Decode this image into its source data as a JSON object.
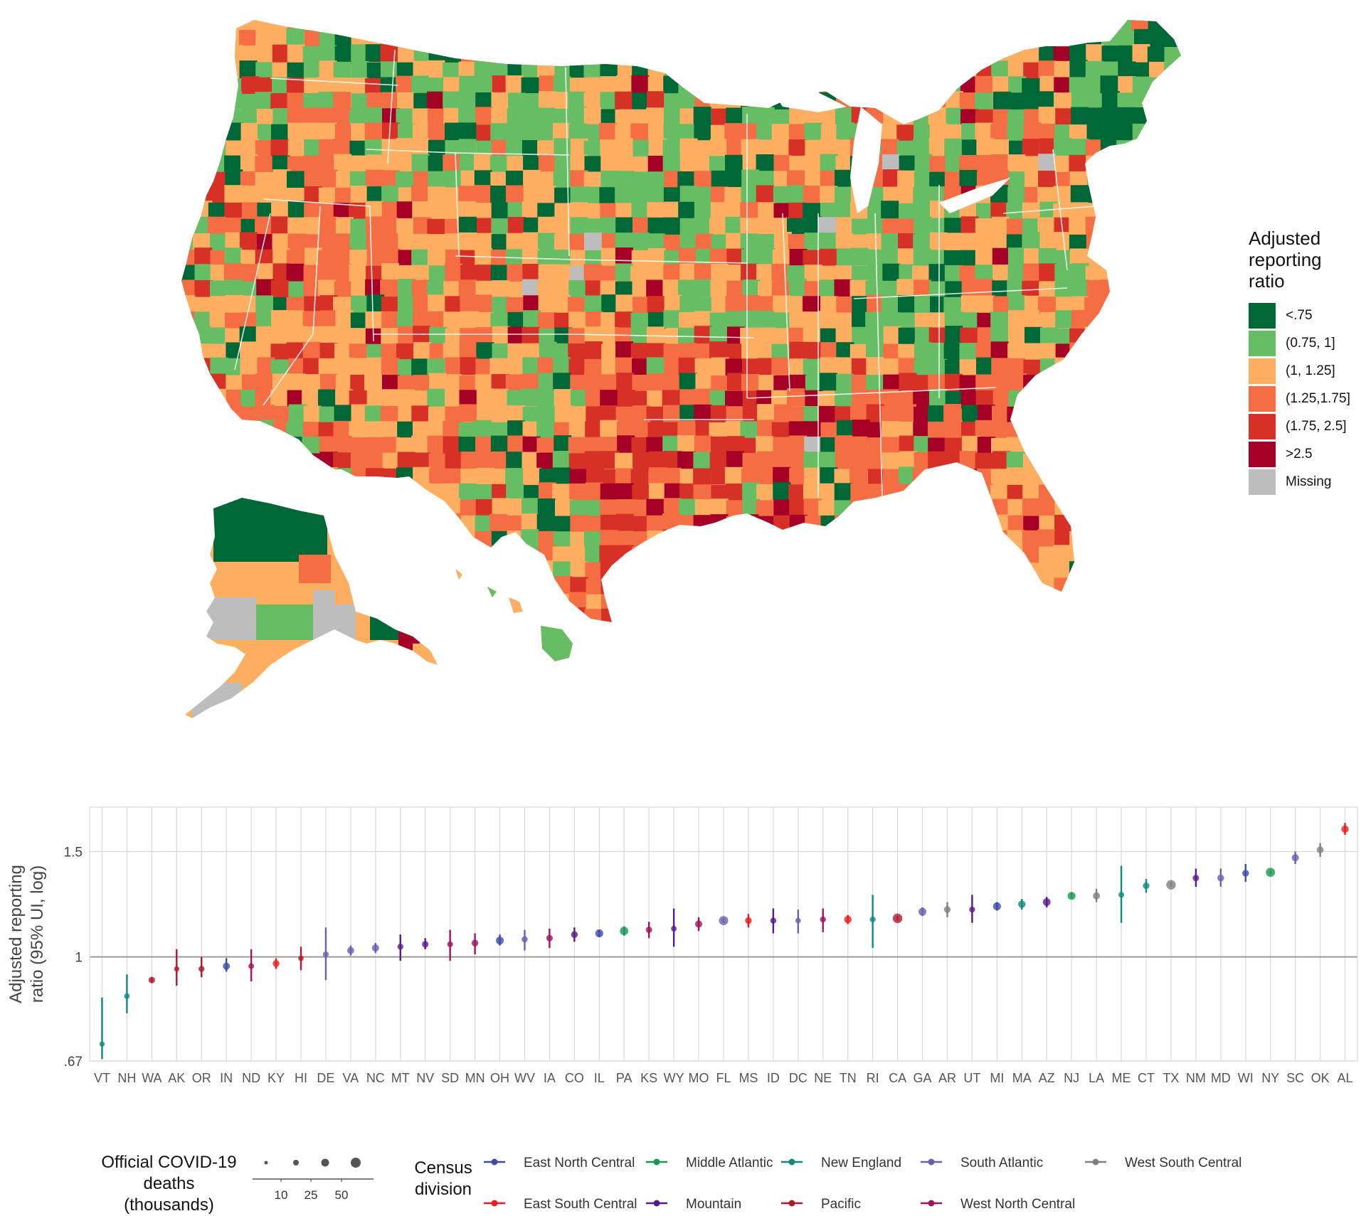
{
  "map": {
    "legend_title_lines": [
      "Adjusted",
      "reporting",
      "ratio"
    ],
    "categories": [
      {
        "label": "<.75",
        "color": "#006837"
      },
      {
        "label": "(0.75, 1]",
        "color": "#66bd63"
      },
      {
        "label": "(1, 1.25]",
        "color": "#fdae61"
      },
      {
        "label": "(1.25,1.75]",
        "color": "#f46d43"
      },
      {
        "label": "(1.75, 2.5]",
        "color": "#d73027"
      },
      {
        "label": ">2.5",
        "color": "#a50026"
      },
      {
        "label": "Missing",
        "color": "#bdbdbd"
      }
    ]
  },
  "chart_data": {
    "type": "scatter",
    "subtype": "point-range (95% UI)",
    "ylabel_lines": [
      "Adjusted reporting",
      "ratio (95% UI, log)"
    ],
    "yscale": "log",
    "ylim": [
      0.67,
      1.78
    ],
    "yticks": [
      0.67,
      1,
      1.5
    ],
    "ytick_labels": [
      ".67",
      "1",
      "1.5"
    ],
    "reference_line": 1,
    "divisions": [
      {
        "name": "East North Central",
        "color": "#3b4ba8"
      },
      {
        "name": "East South Central",
        "color": "#ee1c1c"
      },
      {
        "name": "Middle Atlantic",
        "color": "#1a9850"
      },
      {
        "name": "Mountain",
        "color": "#5a1a8f"
      },
      {
        "name": "New England",
        "color": "#0e8a7e"
      },
      {
        "name": "Pacific",
        "color": "#b2182b"
      },
      {
        "name": "South Atlantic",
        "color": "#6a5fb0"
      },
      {
        "name": "West North Central",
        "color": "#a0145f"
      },
      {
        "name": "West South Central",
        "color": "#7f7f7f"
      }
    ],
    "points": [
      {
        "state": "VT",
        "value": 0.715,
        "lo": 0.675,
        "hi": 0.855,
        "division": "New England",
        "deaths": 0.3
      },
      {
        "state": "NH",
        "value": 0.86,
        "lo": 0.805,
        "hi": 0.935,
        "division": "New England",
        "deaths": 1.4
      },
      {
        "state": "WA",
        "value": 0.915,
        "lo": 0.905,
        "hi": 0.925,
        "division": "Pacific",
        "deaths": 8
      },
      {
        "state": "AK",
        "value": 0.955,
        "lo": 0.895,
        "hi": 1.03,
        "division": "Pacific",
        "deaths": 0.6
      },
      {
        "state": "OR",
        "value": 0.955,
        "lo": 0.925,
        "hi": 1.0,
        "division": "Pacific",
        "deaths": 4
      },
      {
        "state": "IN",
        "value": 0.965,
        "lo": 0.945,
        "hi": 0.995,
        "division": "East North Central",
        "deaths": 15
      },
      {
        "state": "ND",
        "value": 0.965,
        "lo": 0.91,
        "hi": 1.03,
        "division": "West North Central",
        "deaths": 2
      },
      {
        "state": "KY",
        "value": 0.975,
        "lo": 0.955,
        "hi": 0.995,
        "division": "East South Central",
        "deaths": 12
      },
      {
        "state": "HI",
        "value": 0.995,
        "lo": 0.95,
        "hi": 1.04,
        "division": "Pacific",
        "deaths": 1
      },
      {
        "state": "DE",
        "value": 1.01,
        "lo": 0.915,
        "hi": 1.12,
        "division": "South Atlantic",
        "deaths": 2.5
      },
      {
        "state": "VA",
        "value": 1.025,
        "lo": 1.005,
        "hi": 1.045,
        "division": "South Atlantic",
        "deaths": 14
      },
      {
        "state": "NC",
        "value": 1.035,
        "lo": 1.015,
        "hi": 1.055,
        "division": "South Atlantic",
        "deaths": 16
      },
      {
        "state": "MT",
        "value": 1.04,
        "lo": 0.985,
        "hi": 1.09,
        "division": "Mountain",
        "deaths": 3
      },
      {
        "state": "NV",
        "value": 1.05,
        "lo": 1.03,
        "hi": 1.075,
        "division": "Mountain",
        "deaths": 8
      },
      {
        "state": "SD",
        "value": 1.05,
        "lo": 0.985,
        "hi": 1.11,
        "division": "West North Central",
        "deaths": 2.5
      },
      {
        "state": "MN",
        "value": 1.055,
        "lo": 1.01,
        "hi": 1.095,
        "division": "West North Central",
        "deaths": 11
      },
      {
        "state": "OH",
        "value": 1.065,
        "lo": 1.045,
        "hi": 1.09,
        "division": "East North Central",
        "deaths": 28
      },
      {
        "state": "WV",
        "value": 1.07,
        "lo": 1.025,
        "hi": 1.11,
        "division": "South Atlantic",
        "deaths": 5
      },
      {
        "state": "IA",
        "value": 1.075,
        "lo": 1.035,
        "hi": 1.115,
        "division": "West North Central",
        "deaths": 9
      },
      {
        "state": "CO",
        "value": 1.09,
        "lo": 1.06,
        "hi": 1.12,
        "division": "Mountain",
        "deaths": 11
      },
      {
        "state": "IL",
        "value": 1.095,
        "lo": 1.08,
        "hi": 1.11,
        "division": "East North Central",
        "deaths": 30
      },
      {
        "state": "PA",
        "value": 1.105,
        "lo": 1.085,
        "hi": 1.125,
        "division": "Middle Atlantic",
        "deaths": 40
      },
      {
        "state": "KS",
        "value": 1.11,
        "lo": 1.075,
        "hi": 1.145,
        "division": "West North Central",
        "deaths": 7
      },
      {
        "state": "WY",
        "value": 1.115,
        "lo": 1.04,
        "hi": 1.205,
        "division": "Mountain",
        "deaths": 1.5
      },
      {
        "state": "MO",
        "value": 1.135,
        "lo": 1.105,
        "hi": 1.165,
        "division": "West North Central",
        "deaths": 17
      },
      {
        "state": "FL",
        "value": 1.15,
        "lo": 1.14,
        "hi": 1.16,
        "division": "South Atlantic",
        "deaths": 60
      },
      {
        "state": "MS",
        "value": 1.15,
        "lo": 1.12,
        "hi": 1.18,
        "division": "East South Central",
        "deaths": 10
      },
      {
        "state": "ID",
        "value": 1.15,
        "lo": 1.095,
        "hi": 1.205,
        "division": "Mountain",
        "deaths": 4
      },
      {
        "state": "DC",
        "value": 1.15,
        "lo": 1.095,
        "hi": 1.2,
        "division": "South Atlantic",
        "deaths": 1.2
      },
      {
        "state": "NE",
        "value": 1.155,
        "lo": 1.1,
        "hi": 1.205,
        "division": "West North Central",
        "deaths": 4
      },
      {
        "state": "TN",
        "value": 1.155,
        "lo": 1.135,
        "hi": 1.175,
        "division": "East South Central",
        "deaths": 20
      },
      {
        "state": "RI",
        "value": 1.155,
        "lo": 1.035,
        "hi": 1.27,
        "division": "New England",
        "deaths": 3
      },
      {
        "state": "CA",
        "value": 1.16,
        "lo": 1.15,
        "hi": 1.17,
        "division": "Pacific",
        "deaths": 70
      },
      {
        "state": "GA",
        "value": 1.19,
        "lo": 1.17,
        "hi": 1.21,
        "division": "South Atlantic",
        "deaths": 28
      },
      {
        "state": "AR",
        "value": 1.2,
        "lo": 1.165,
        "hi": 1.235,
        "division": "West South Central",
        "deaths": 9
      },
      {
        "state": "UT",
        "value": 1.2,
        "lo": 1.14,
        "hi": 1.27,
        "division": "Mountain",
        "deaths": 3.5
      },
      {
        "state": "MI",
        "value": 1.215,
        "lo": 1.195,
        "hi": 1.235,
        "division": "East North Central",
        "deaths": 30
      },
      {
        "state": "MA",
        "value": 1.225,
        "lo": 1.2,
        "hi": 1.25,
        "division": "New England",
        "deaths": 20
      },
      {
        "state": "AZ",
        "value": 1.235,
        "lo": 1.21,
        "hi": 1.26,
        "division": "Mountain",
        "deaths": 25
      },
      {
        "state": "NJ",
        "value": 1.265,
        "lo": 1.255,
        "hi": 1.28,
        "division": "Middle Atlantic",
        "deaths": 30
      },
      {
        "state": "LA",
        "value": 1.265,
        "lo": 1.235,
        "hi": 1.3,
        "division": "West South Central",
        "deaths": 15
      },
      {
        "state": "ME",
        "value": 1.27,
        "lo": 1.14,
        "hi": 1.42,
        "division": "New England",
        "deaths": 1.5
      },
      {
        "state": "CT",
        "value": 1.315,
        "lo": 1.28,
        "hi": 1.35,
        "division": "New England",
        "deaths": 9
      },
      {
        "state": "TX",
        "value": 1.32,
        "lo": 1.31,
        "hi": 1.335,
        "division": "West South Central",
        "deaths": 70
      },
      {
        "state": "NM",
        "value": 1.355,
        "lo": 1.31,
        "hi": 1.405,
        "division": "Mountain",
        "deaths": 7
      },
      {
        "state": "MD",
        "value": 1.355,
        "lo": 1.31,
        "hi": 1.405,
        "division": "South Atlantic",
        "deaths": 12
      },
      {
        "state": "WI",
        "value": 1.38,
        "lo": 1.335,
        "hi": 1.43,
        "division": "East North Central",
        "deaths": 11
      },
      {
        "state": "NY",
        "value": 1.385,
        "lo": 1.375,
        "hi": 1.395,
        "division": "Middle Atlantic",
        "deaths": 60
      },
      {
        "state": "SC",
        "value": 1.465,
        "lo": 1.43,
        "hi": 1.5,
        "division": "South Atlantic",
        "deaths": 16
      },
      {
        "state": "OK",
        "value": 1.51,
        "lo": 1.47,
        "hi": 1.55,
        "division": "West South Central",
        "deaths": 12
      },
      {
        "state": "AL",
        "value": 1.635,
        "lo": 1.6,
        "hi": 1.675,
        "division": "East South Central",
        "deaths": 18
      }
    ]
  },
  "size_legend": {
    "title_lines": [
      "Official COVID-19",
      "deaths (thousands)"
    ],
    "ticks": [
      "10",
      "25",
      "50"
    ]
  },
  "division_legend": {
    "title_lines": [
      "Census",
      "division"
    ]
  }
}
